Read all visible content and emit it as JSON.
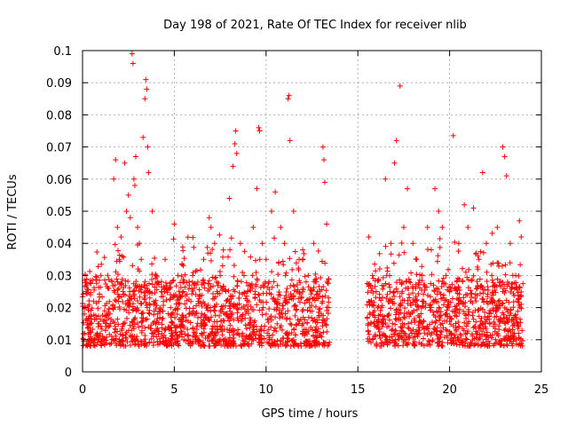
{
  "chart_data": {
    "type": "scatter",
    "title": "Day 198 of 2021, Rate Of TEC Index for receiver nlib",
    "xlabel": "GPS time / hours",
    "ylabel": "ROTI / TECUs",
    "xlim": [
      0,
      25
    ],
    "ylim": [
      0,
      0.1
    ],
    "x_ticks": [
      0,
      5,
      10,
      15,
      20,
      25
    ],
    "x_tick_labels": [
      "0",
      "5",
      "10",
      "15",
      "20",
      "25"
    ],
    "y_ticks": [
      0,
      0.01,
      0.02,
      0.03,
      0.04,
      0.05,
      0.06,
      0.07,
      0.08,
      0.09,
      0.1
    ],
    "y_tick_labels": [
      "0",
      "0.01",
      "0.02",
      "0.03",
      "0.04",
      "0.05",
      "0.06",
      "0.07",
      "0.08",
      "0.09",
      "0.1"
    ],
    "grid": true,
    "marker": "+",
    "color": "#ff0000",
    "data_gap_hours": [
      13.5,
      15.5
    ],
    "series": [
      {
        "name": "ROTI",
        "points": [
          [
            0.1,
            0.018
          ],
          [
            0.2,
            0.025
          ],
          [
            0.4,
            0.015
          ],
          [
            0.6,
            0.022
          ],
          [
            0.8,
            0.012
          ],
          [
            1.0,
            0.03
          ],
          [
            1.2,
            0.019
          ],
          [
            1.4,
            0.014
          ],
          [
            1.6,
            0.028
          ],
          [
            1.7,
            0.06
          ],
          [
            1.8,
            0.066
          ],
          [
            1.9,
            0.045
          ],
          [
            2.0,
            0.035
          ],
          [
            2.1,
            0.042
          ],
          [
            2.2,
            0.025
          ],
          [
            2.3,
            0.065
          ],
          [
            2.4,
            0.05
          ],
          [
            2.5,
            0.055
          ],
          [
            2.6,
            0.048
          ],
          [
            2.7,
            0.099
          ],
          [
            2.75,
            0.096
          ],
          [
            2.8,
            0.06
          ],
          [
            2.85,
            0.058
          ],
          [
            2.9,
            0.067
          ],
          [
            3.0,
            0.045
          ],
          [
            3.1,
            0.04
          ],
          [
            3.2,
            0.035
          ],
          [
            3.3,
            0.073
          ],
          [
            3.4,
            0.085
          ],
          [
            3.45,
            0.091
          ],
          [
            3.5,
            0.088
          ],
          [
            3.55,
            0.07
          ],
          [
            3.6,
            0.062
          ],
          [
            3.8,
            0.05
          ],
          [
            4.0,
            0.03
          ],
          [
            4.3,
            0.025
          ],
          [
            4.5,
            0.035
          ],
          [
            4.8,
            0.02
          ],
          [
            5.0,
            0.046
          ],
          [
            5.2,
            0.03
          ],
          [
            5.5,
            0.025
          ],
          [
            5.8,
            0.018
          ],
          [
            6.0,
            0.03
          ],
          [
            6.3,
            0.022
          ],
          [
            6.6,
            0.035
          ],
          [
            6.9,
            0.048
          ],
          [
            7.0,
            0.045
          ],
          [
            7.2,
            0.04
          ],
          [
            7.5,
            0.03
          ],
          [
            7.8,
            0.025
          ],
          [
            8.0,
            0.054
          ],
          [
            8.2,
            0.064
          ],
          [
            8.3,
            0.071
          ],
          [
            8.35,
            0.075
          ],
          [
            8.4,
            0.068
          ],
          [
            8.6,
            0.04
          ],
          [
            8.8,
            0.03
          ],
          [
            9.0,
            0.025
          ],
          [
            9.3,
            0.045
          ],
          [
            9.5,
            0.057
          ],
          [
            9.6,
            0.076
          ],
          [
            9.65,
            0.075
          ],
          [
            9.8,
            0.04
          ],
          [
            10.0,
            0.035
          ],
          [
            10.3,
            0.05
          ],
          [
            10.5,
            0.056
          ],
          [
            10.8,
            0.045
          ],
          [
            11.0,
            0.04
          ],
          [
            11.2,
            0.085
          ],
          [
            11.25,
            0.086
          ],
          [
            11.3,
            0.072
          ],
          [
            11.5,
            0.05
          ],
          [
            11.8,
            0.035
          ],
          [
            12.0,
            0.038
          ],
          [
            12.3,
            0.03
          ],
          [
            12.6,
            0.04
          ],
          [
            12.8,
            0.025
          ],
          [
            13.1,
            0.07
          ],
          [
            13.15,
            0.066
          ],
          [
            13.2,
            0.059
          ],
          [
            13.3,
            0.046
          ],
          [
            13.4,
            0.02
          ],
          [
            15.6,
            0.042
          ],
          [
            15.8,
            0.03
          ],
          [
            16.0,
            0.025
          ],
          [
            16.3,
            0.02
          ],
          [
            16.5,
            0.06
          ],
          [
            16.8,
            0.04
          ],
          [
            17.0,
            0.065
          ],
          [
            17.1,
            0.072
          ],
          [
            17.3,
            0.089
          ],
          [
            17.5,
            0.045
          ],
          [
            17.7,
            0.057
          ],
          [
            18.0,
            0.04
          ],
          [
            18.2,
            0.035
          ],
          [
            18.5,
            0.03
          ],
          [
            18.8,
            0.045
          ],
          [
            19.0,
            0.038
          ],
          [
            19.2,
            0.057
          ],
          [
            19.4,
            0.05
          ],
          [
            19.6,
            0.045
          ],
          [
            19.8,
            0.03
          ],
          [
            20.0,
            0.025
          ],
          [
            20.2,
            0.0735
          ],
          [
            20.5,
            0.04
          ],
          [
            20.8,
            0.052
          ],
          [
            21.0,
            0.045
          ],
          [
            21.3,
            0.051
          ],
          [
            21.6,
            0.035
          ],
          [
            21.8,
            0.062
          ],
          [
            22.0,
            0.04
          ],
          [
            22.3,
            0.03
          ],
          [
            22.6,
            0.045
          ],
          [
            22.9,
            0.07
          ],
          [
            23.0,
            0.067
          ],
          [
            23.1,
            0.061
          ],
          [
            23.3,
            0.04
          ],
          [
            23.6,
            0.03
          ],
          [
            23.8,
            0.047
          ],
          [
            23.9,
            0.042
          ]
        ],
        "background_band": {
          "description": "dense baseline cloud of ROTI values around 0.01-0.025 TECU/min across observed hours",
          "y_range": [
            0.004,
            0.025
          ]
        }
      }
    ]
  }
}
